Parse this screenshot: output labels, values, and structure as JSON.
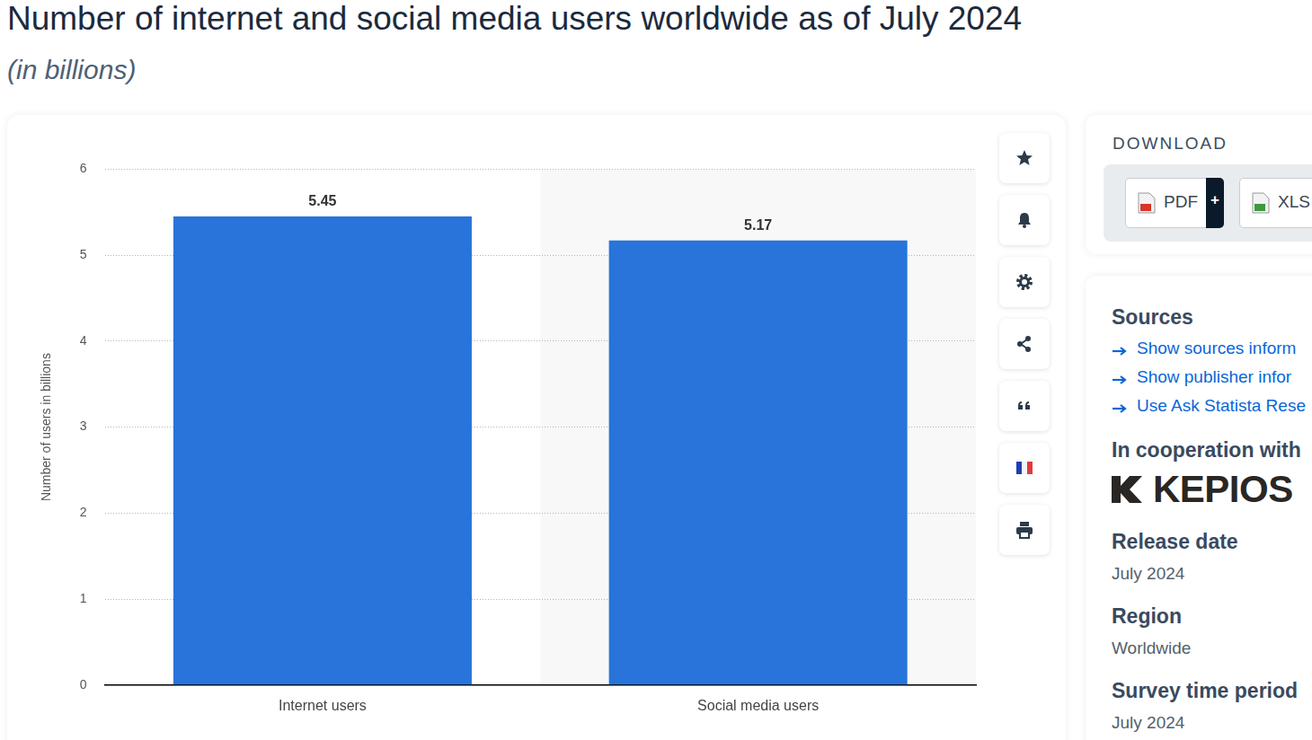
{
  "chart_data": {
    "type": "bar",
    "title": "Number of internet and social media users worldwide as of July 2024",
    "subtitle": "(in billions)",
    "ylabel": "Number of users in billions",
    "categories": [
      "Internet users",
      "Social media users"
    ],
    "values": [
      5.45,
      5.17
    ],
    "color": "#2874db",
    "ylim": [
      0,
      6
    ],
    "yticks": [
      0,
      1,
      2,
      3,
      4,
      5,
      6
    ],
    "grid": true,
    "data_labels": true
  },
  "sidebar": {
    "download": {
      "heading": "DOWNLOAD",
      "buttons": [
        "PDF",
        "XLS"
      ],
      "extra": "+"
    },
    "sources": {
      "heading": "Sources",
      "links": [
        "Show sources inform",
        "Show publisher infor",
        "Use Ask Statista Rese"
      ]
    },
    "cooperation": {
      "heading": "In cooperation with",
      "partner": "KEPIOS"
    },
    "details": [
      {
        "label": "Release date",
        "value": "July 2024"
      },
      {
        "label": "Region",
        "value": "Worldwide"
      },
      {
        "label": "Survey time period",
        "value": "July 2024"
      }
    ]
  }
}
